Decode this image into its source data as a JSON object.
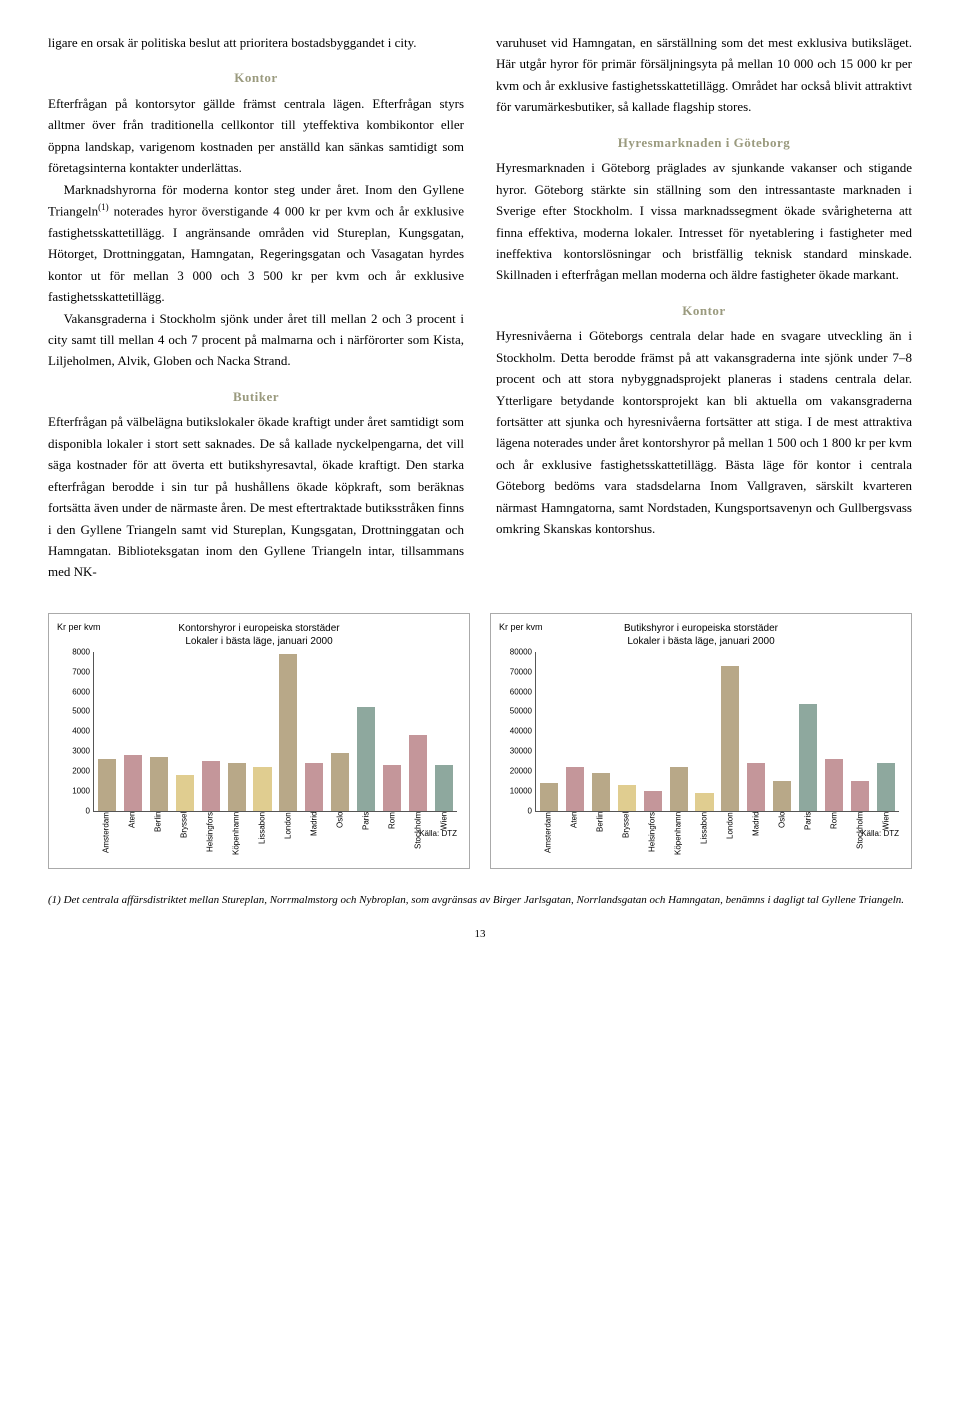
{
  "left": {
    "p1": "ligare en orsak är politiska beslut att prioritera bostadsbyggandet i city.",
    "h1": "Kontor",
    "p2": "Efterfrågan på kontorsytor gällde främst centrala lägen. Efterfrågan styrs alltmer över från traditionella cellkontor till yteffektiva kombikontor eller öppna landskap, varigenom kostnaden per anställd kan sänkas samtidigt som företagsinterna kontakter underlättas.",
    "p3a": "Marknadshyrorna för moderna kontor steg under året. Inom den Gyllene Triangeln",
    "p3sup": "(1)",
    "p3b": " noterades hyror överstigande 4 000 kr per kvm och år exklusive fastighetsskattetillägg. I angränsande områden vid Stureplan, Kungsgatan, Hötorget, Drottninggatan, Hamngatan, Regeringsgatan och Vasagatan hyrdes kontor ut för mellan 3 000 och 3 500 kr per kvm och år exklusive fastighetsskattetillägg.",
    "p4": "Vakansgraderna i Stockholm sjönk under året till mellan 2 och 3 procent i city samt till mellan 4 och 7 procent på malmarna och i närförorter som Kista, Liljeholmen, Alvik, Globen och Nacka Strand.",
    "h2": "Butiker",
    "p5": "Efterfrågan på välbelägna butikslokaler ökade kraftigt under året samtidigt som disponibla lokaler i stort sett saknades. De så kallade nyckelpengarna, det vill säga kostnader för att överta ett butikshyresavtal, ökade kraftigt. Den starka efterfrågan berodde i sin tur på hushållens ökade köpkraft, som beräknas fortsätta även under de närmaste åren. De mest eftertraktade butiksstråken finns i den Gyllene Triangeln samt vid Stureplan, Kungsgatan, Drottninggatan och Hamngatan. Biblioteksgatan inom den Gyllene Triangeln intar, tillsammans med NK-"
  },
  "right": {
    "p1": "varuhuset vid Hamngatan, en särställning som det mest exklusiva butiksläget. Här utgår hyror för primär försäljningsyta på mellan 10 000 och 15 000 kr per kvm och år exklusive fastighetsskattetillägg. Området har också blivit attraktivt för varumärkesbutiker, så kallade flagship stores.",
    "h1": "Hyresmarknaden i Göteborg",
    "p2": "Hyresmarknaden i Göteborg präglades av sjunkande vakanser och stigande hyror. Göteborg stärkte sin ställning som den intressantaste marknaden i Sverige efter Stockholm. I vissa marknadssegment ökade svårigheterna att finna effektiva, moderna lokaler. Intresset för nyetablering i fastigheter med ineffektiva kontorslösningar och bristfällig teknisk standard minskade. Skillnaden i efterfrågan mellan moderna och äldre fastigheter ökade markant.",
    "h2": "Kontor",
    "p3": "Hyresnivåerna i Göteborgs centrala delar hade en svagare utveckling än i Stockholm. Detta berodde främst på att vakansgraderna inte sjönk under 7–8 procent och att stora nybyggnadsprojekt planeras i stadens centrala delar. Ytterligare betydande kontorsprojekt kan bli aktuella om vakansgraderna fortsätter att sjunka och hyresnivåerna fortsätter att stiga. I de mest attraktiva lägena noterades under året kontorshyror på mellan 1 500 och 1 800 kr per kvm och år exklusive fastighetsskattetillägg. Bästa läge för kontor i centrala Göteborg bedöms vara stadsdelarna Inom Vallgraven, särskilt kvarteren närmast Hamngatorna, samt Nordstaden, Kungsportsavenyn och Gullbergsvass omkring Skanskas kontorshus."
  },
  "chart1": {
    "title_l1": "Kontorshyror i europeiska storstäder",
    "title_l2": "Lokaler i bästa läge, januari 2000",
    "ylabel": "Kr per kvm",
    "ymax": 8000,
    "ytick_step": 1000,
    "source": "Källa: DTZ",
    "categories": [
      "Amsterdam",
      "Aten",
      "Berlin",
      "Bryssel",
      "Helsingfors",
      "Köpenhamn",
      "Lissabon",
      "London",
      "Madrid",
      "Oslo",
      "Paris",
      "Rom",
      "Stockholm",
      "Wien"
    ],
    "values": [
      2600,
      2800,
      2700,
      1800,
      2500,
      2400,
      2200,
      7900,
      2400,
      2900,
      5200,
      2300,
      3800,
      2300
    ],
    "colors": [
      "#b8a888",
      "#c4969a",
      "#b8a888",
      "#e0cd90",
      "#c4969a",
      "#b8a888",
      "#e0cd90",
      "#b8a888",
      "#c4969a",
      "#b8a888",
      "#8ea89e",
      "#c4969a",
      "#c4969a",
      "#8ea89e"
    ]
  },
  "chart2": {
    "title_l1": "Butikshyror i europeiska storstäder",
    "title_l2": "Lokaler i bästa läge, januari 2000",
    "ylabel": "Kr per kvm",
    "ymax": 80000,
    "ytick_step": 10000,
    "source": "Källa: DTZ",
    "categories": [
      "Amsterdam",
      "Aten",
      "Berlin",
      "Bryssel",
      "Helsingfors",
      "Köpenhamn",
      "Lissabon",
      "London",
      "Madrid",
      "Oslo",
      "Paris",
      "Rom",
      "Stockholm",
      "Wien"
    ],
    "values": [
      14000,
      22000,
      19000,
      13000,
      10000,
      22000,
      9000,
      73000,
      24000,
      15000,
      54000,
      26000,
      15000,
      24000
    ],
    "colors": [
      "#b8a888",
      "#c4969a",
      "#b8a888",
      "#e0cd90",
      "#c4969a",
      "#b8a888",
      "#e0cd90",
      "#b8a888",
      "#c4969a",
      "#b8a888",
      "#8ea89e",
      "#c4969a",
      "#c4969a",
      "#8ea89e"
    ]
  },
  "footnote": "(1) Det centrala affärsdistriktet mellan Stureplan, Norrmalmstorg och Nybroplan, som avgränsas av Birger Jarlsgatan, Norrlandsgatan och Hamngatan, benämns i dagligt tal Gyllene Triangeln.",
  "pagenum": "13"
}
